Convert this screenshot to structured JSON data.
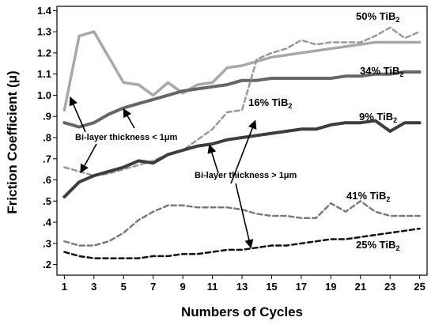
{
  "chart_data": {
    "type": "line",
    "xlabel": "Numbers of Cycles",
    "ylabel": "Friction Coefficient (μ)",
    "xlim": [
      0.5,
      25.5
    ],
    "ylim": [
      0.15,
      1.42
    ],
    "x_ticks": [
      "1",
      "3",
      "5",
      "7",
      "9",
      "11",
      "13",
      "15",
      "17",
      "19",
      "21",
      "23",
      "25"
    ],
    "y_ticks": [
      ".2",
      ".3",
      ".4",
      ".5",
      ".6",
      ".7",
      ".8",
      ".9",
      "1.0",
      "1.1",
      "1.2",
      "1.3",
      "1.4"
    ],
    "x": [
      1,
      2,
      3,
      4,
      5,
      6,
      7,
      8,
      9,
      10,
      11,
      12,
      13,
      14,
      15,
      16,
      17,
      18,
      19,
      20,
      21,
      22,
      23,
      24,
      25
    ],
    "series": [
      {
        "name": "50% TiB",
        "sub": "2",
        "color": "#a8a8a8",
        "dash": "",
        "width": 3.5,
        "values": [
          0.93,
          1.28,
          1.3,
          1.18,
          1.06,
          1.05,
          1.0,
          1.06,
          1.01,
          1.05,
          1.06,
          1.13,
          1.14,
          1.16,
          1.18,
          1.19,
          1.2,
          1.21,
          1.22,
          1.23,
          1.24,
          1.25,
          1.25,
          1.25,
          1.25
        ]
      },
      {
        "name": "34% TiB",
        "sub": "2",
        "color": "#666666",
        "dash": "",
        "width": 4,
        "values": [
          0.87,
          0.85,
          0.87,
          0.91,
          0.94,
          0.96,
          0.98,
          1.0,
          1.02,
          1.03,
          1.04,
          1.05,
          1.07,
          1.07,
          1.08,
          1.08,
          1.08,
          1.08,
          1.08,
          1.09,
          1.09,
          1.1,
          1.1,
          1.11,
          1.11
        ]
      },
      {
        "name": "16% TiB",
        "sub": "2",
        "color": "#999999",
        "dash": "6,4",
        "width": 2.5,
        "values": [
          0.66,
          0.64,
          0.62,
          0.63,
          0.65,
          0.67,
          0.69,
          0.72,
          0.74,
          0.79,
          0.84,
          0.92,
          0.93,
          1.17,
          1.2,
          1.22,
          1.26,
          1.24,
          1.25,
          1.25,
          1.25,
          1.28,
          1.32,
          1.27,
          1.3
        ]
      },
      {
        "name": "9% TiB",
        "sub": "2",
        "color": "#3d3d3d",
        "dash": "",
        "width": 4,
        "values": [
          0.52,
          0.59,
          0.62,
          0.64,
          0.66,
          0.69,
          0.68,
          0.72,
          0.74,
          0.76,
          0.77,
          0.79,
          0.8,
          0.81,
          0.82,
          0.83,
          0.84,
          0.84,
          0.86,
          0.87,
          0.87,
          0.88,
          0.83,
          0.87,
          0.87
        ]
      },
      {
        "name": "41% TiB",
        "sub": "2",
        "color": "#7a7a7a",
        "dash": "6,4",
        "width": 2.5,
        "values": [
          0.31,
          0.29,
          0.29,
          0.31,
          0.35,
          0.41,
          0.45,
          0.48,
          0.48,
          0.47,
          0.47,
          0.47,
          0.46,
          0.44,
          0.43,
          0.43,
          0.42,
          0.42,
          0.49,
          0.45,
          0.5,
          0.45,
          0.43,
          0.43,
          0.43
        ]
      },
      {
        "name": "25% TiB",
        "sub": "2",
        "color": "#111111",
        "dash": "6,4",
        "width": 2.5,
        "values": [
          0.26,
          0.24,
          0.23,
          0.23,
          0.23,
          0.23,
          0.24,
          0.24,
          0.25,
          0.25,
          0.26,
          0.27,
          0.27,
          0.28,
          0.29,
          0.29,
          0.3,
          0.31,
          0.32,
          0.32,
          0.33,
          0.34,
          0.35,
          0.36,
          0.37
        ]
      }
    ],
    "annotations": [
      {
        "text": "Bi-layer thickness < 1μm"
      },
      {
        "text": "Bi-layer thickness > 1μm"
      }
    ]
  }
}
